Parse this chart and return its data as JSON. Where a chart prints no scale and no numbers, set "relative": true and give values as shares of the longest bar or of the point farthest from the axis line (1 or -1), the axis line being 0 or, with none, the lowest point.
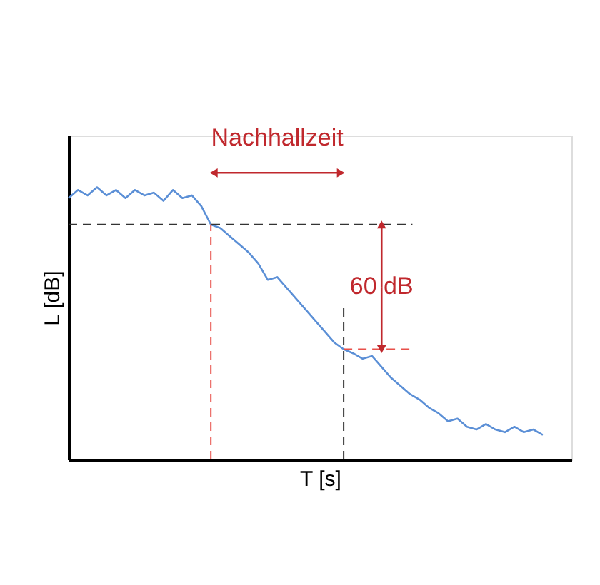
{
  "chart_data": {
    "type": "line",
    "relative": true,
    "xlabel": "T [s]",
    "ylabel": "L [dB]",
    "grid": false,
    "categories": [
      null,
      null,
      null,
      null,
      null,
      null,
      null,
      null,
      null,
      null,
      null,
      null,
      null,
      null,
      null,
      null,
      null,
      null,
      null,
      null,
      null,
      null,
      null,
      null,
      null,
      null,
      null,
      null,
      null,
      null,
      null,
      null,
      null,
      null,
      null,
      null,
      null,
      null,
      null,
      null,
      null,
      null,
      null,
      null,
      null,
      null,
      null,
      null,
      null,
      null,
      null
    ],
    "series": [
      {
        "color": "#5b8fd6",
        "values": [
          0.96,
          0.99,
          0.97,
          1.0,
          0.97,
          0.99,
          0.96,
          0.99,
          0.97,
          0.98,
          0.95,
          0.99,
          0.96,
          0.97,
          0.93,
          0.863,
          0.85,
          0.82,
          0.79,
          0.76,
          0.72,
          0.66,
          0.67,
          0.63,
          0.59,
          0.55,
          0.51,
          0.47,
          0.43,
          0.405,
          0.39,
          0.37,
          0.38,
          0.34,
          0.3,
          0.27,
          0.24,
          0.22,
          0.19,
          0.17,
          0.14,
          0.15,
          0.12,
          0.11,
          0.13,
          0.11,
          0.1,
          0.12,
          0.1,
          0.11,
          0.09
        ]
      }
    ],
    "ref_lines": [
      {
        "axis": "y",
        "value": 0.863,
        "color": "#333333",
        "line_style": "dashed"
      },
      {
        "axis": "y",
        "value": 0.405,
        "color": "#e8504a",
        "line_style": "dashed"
      }
    ],
    "annotations": [
      "Nachhallzeit",
      "60 dB"
    ]
  }
}
